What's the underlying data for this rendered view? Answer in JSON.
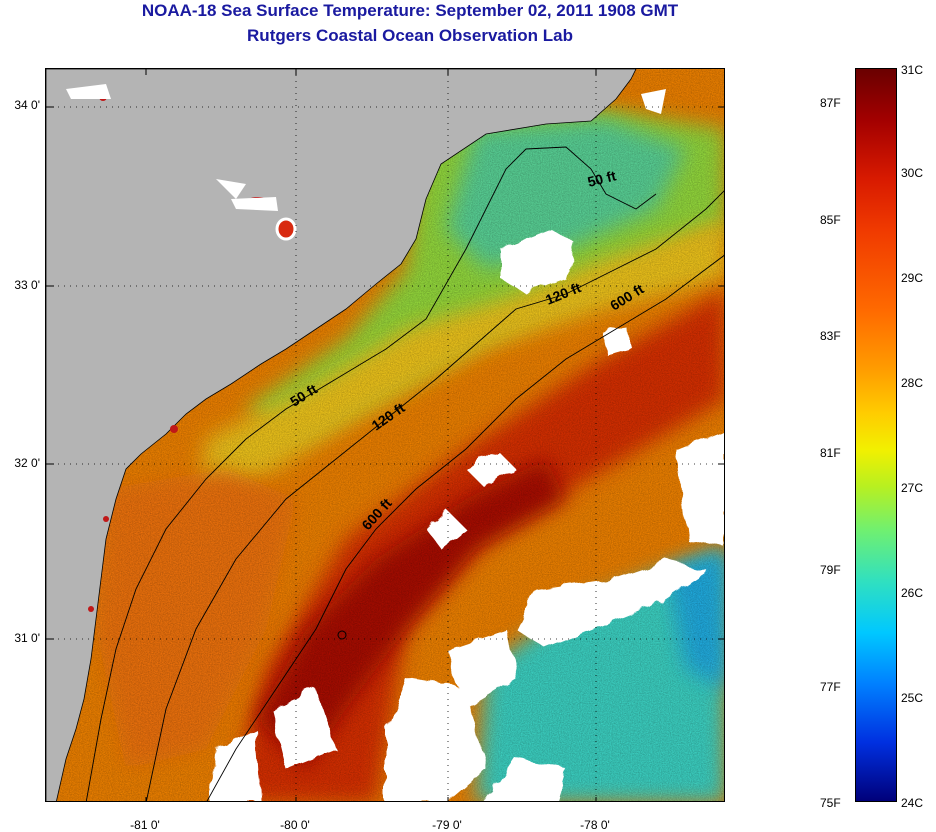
{
  "header": {
    "title_line1": "NOAA-18 Sea Surface Temperature:  September 02, 2011 1908 GMT",
    "title_line2": "Rutgers Coastal Ocean Observation Lab"
  },
  "axes": {
    "lat_labels": [
      "34 0'",
      "33 0'",
      "32 0'",
      "31 0'"
    ],
    "lon_labels": [
      "-81 0'",
      "-80 0'",
      "-79 0'",
      "-78 0'"
    ]
  },
  "contours": {
    "label_50": "50 ft",
    "label_120": "120 ft",
    "label_600": "600 ft"
  },
  "colorbar": {
    "celsius": [
      "31C",
      "30C",
      "29C",
      "28C",
      "27C",
      "26C",
      "25C",
      "24C"
    ],
    "fahrenheit": [
      "87F",
      "85F",
      "83F",
      "81F",
      "79F",
      "77F",
      "75F"
    ]
  },
  "colors": {
    "title": "#1a1aa0",
    "land": "#b4b4b4",
    "warm_core": "#b00000",
    "cold_water": "#30d8d8"
  }
}
